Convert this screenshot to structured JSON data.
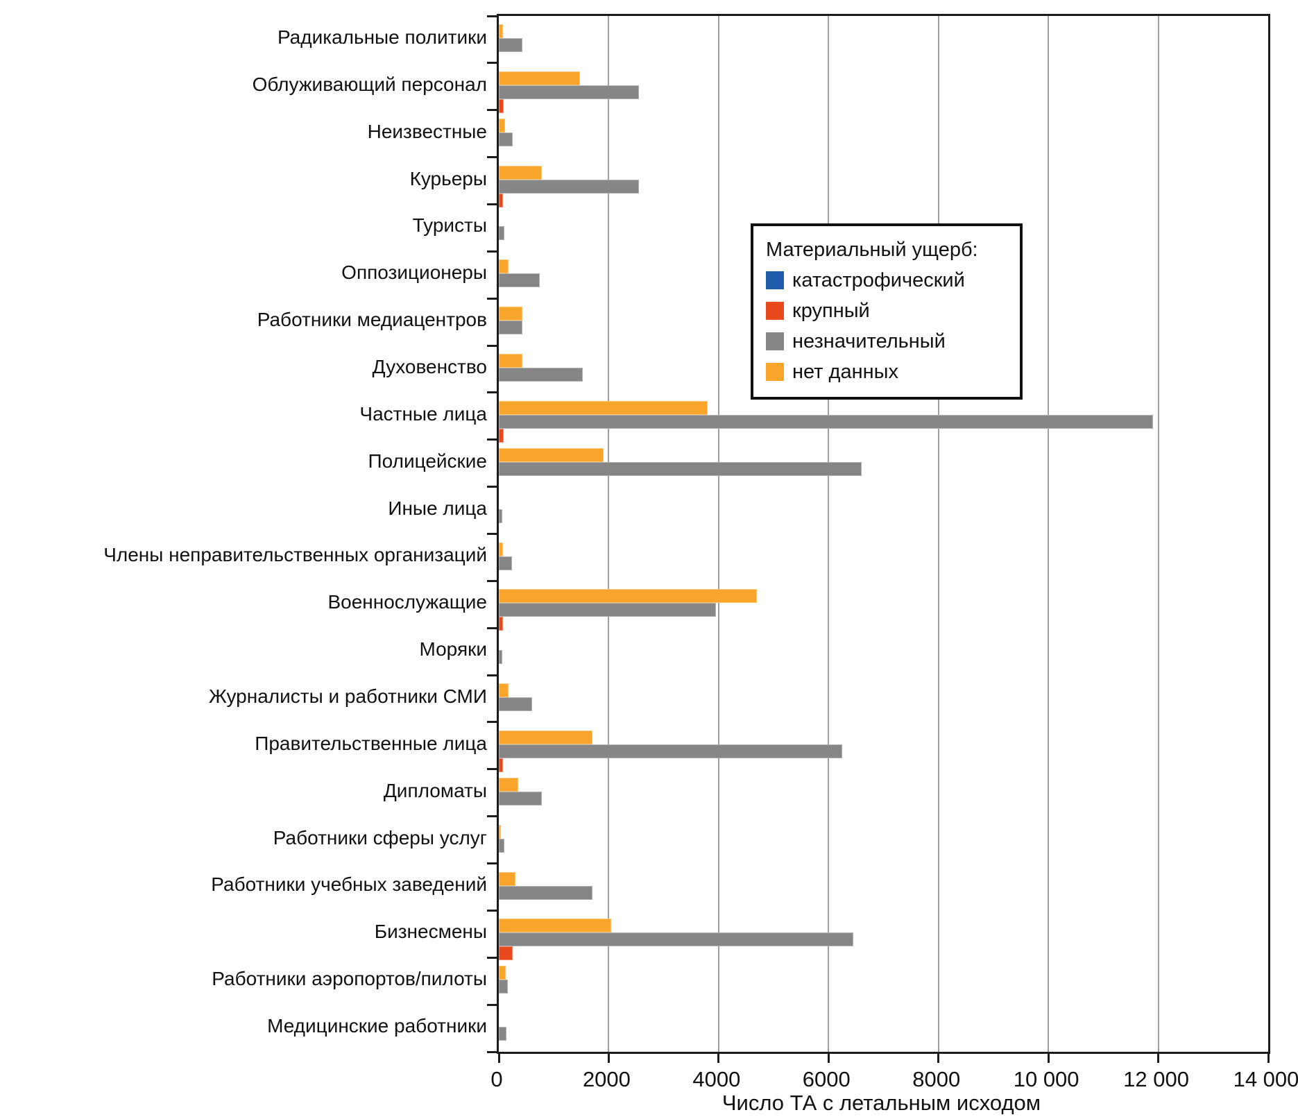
{
  "axis": {
    "xlabel": "Число ТА с летальным исходом"
  },
  "legend": {
    "title": "Материальный ущерб:"
  },
  "chart_data": {
    "type": "bar",
    "orientation": "horizontal",
    "title": "",
    "xlabel": "Число ТА с летальным исходом",
    "ylabel": "",
    "xlim": [
      0,
      14000
    ],
    "x_ticks": [
      0,
      2000,
      4000,
      6000,
      8000,
      10000,
      12000,
      14000
    ],
    "x_tick_labels": [
      "0",
      "2000",
      "4000",
      "6000",
      "8000",
      "10 000",
      "12 000",
      "14 000"
    ],
    "grid": "vertical-gridlines-at-2000",
    "legend_title": "Материальный ущерб:",
    "legend_position": "inside-upper-right-area",
    "bar_order_top_to_bottom": [
      "нет данных",
      "незначительный",
      "крупный",
      "катастрофический"
    ],
    "categories": [
      "Радикальные политики",
      "Облуживающий персонал",
      "Неизвестные",
      "Курьеры",
      "Туристы",
      "Оппозиционеры",
      "Работники медиацентров",
      "Духовенство",
      "Частные лица",
      "Полицейские",
      "Иные лица",
      "Члены неправительственных организаций",
      "Военнослужащие",
      "Моряки",
      "Журналисты и работники СМИ",
      "Правительственные лица",
      "Дипломаты",
      "Работники сферы услуг",
      "Работники учебных заведений",
      "Бизнесмены",
      "Работники аэропортов/пилоты",
      "Медицинские работники"
    ],
    "series": [
      {
        "name": "катастрофический",
        "color": "#1F5CA9",
        "values": [
          0,
          0,
          0,
          0,
          0,
          0,
          0,
          0,
          0,
          0,
          0,
          0,
          0,
          0,
          0,
          0,
          0,
          0,
          0,
          0,
          0,
          0
        ]
      },
      {
        "name": "крупный",
        "color": "#E8491D",
        "values": [
          0,
          90,
          0,
          70,
          0,
          0,
          0,
          0,
          90,
          0,
          0,
          0,
          70,
          0,
          0,
          70,
          0,
          0,
          0,
          250,
          0,
          0
        ]
      },
      {
        "name": "незначительный",
        "color": "#868686",
        "values": [
          430,
          2550,
          250,
          2550,
          100,
          740,
          430,
          1530,
          11900,
          6600,
          60,
          240,
          3950,
          60,
          600,
          6250,
          780,
          100,
          1700,
          6450,
          160,
          140
        ]
      },
      {
        "name": "нет данных",
        "color": "#F9A42A",
        "values": [
          80,
          1480,
          110,
          780,
          0,
          180,
          430,
          430,
          3800,
          1900,
          0,
          70,
          4700,
          0,
          180,
          1700,
          350,
          40,
          300,
          2050,
          120,
          0
        ]
      }
    ]
  }
}
